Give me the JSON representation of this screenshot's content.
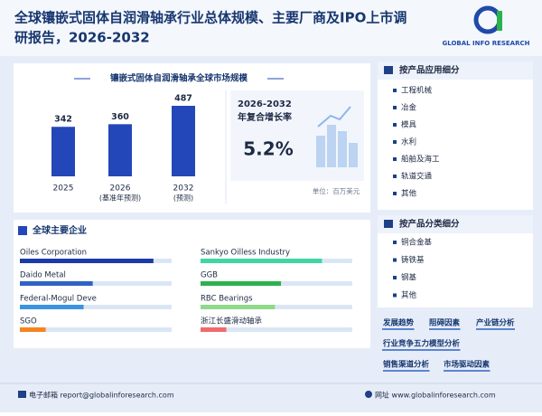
{
  "header": {
    "title_line1": "全球镶嵌式固体自润滑轴承行业总体规模、主要厂商及IPO上市调",
    "title_line2": "研报告，2026-2032",
    "logo": "GLOBAL INFO RESEARCH"
  },
  "market": {
    "title": "镶嵌式固体自润滑轴承全球市场规模",
    "color": "#2347b8",
    "bars": [
      {
        "year": "2025",
        "value": 342
      },
      {
        "year": "2026",
        "note": "(基准年预测)",
        "value": 360
      },
      {
        "year": "2032",
        "note": "(预测)",
        "value": 487
      }
    ],
    "cagr_period": "2026-2032",
    "cagr_label": "年复合增长率",
    "cagr_value": "5.2%",
    "unit": "单位：百万美元"
  },
  "companies": {
    "title": "全球主要企业",
    "items": [
      {
        "name": "Oiles Corporation",
        "share": 88,
        "color": "#1c3ba6"
      },
      {
        "name": "Sankyo Oilless Industry",
        "share": 80,
        "color": "#3fd6a2"
      },
      {
        "name": "Daido Metal",
        "share": 48,
        "color": "#2f62c6"
      },
      {
        "name": "GGB",
        "share": 53,
        "color": "#2bb24c"
      },
      {
        "name": "Federal-Mogul Deve",
        "share": 42,
        "color": "#3a93e3"
      },
      {
        "name": "RBC Bearings",
        "share": 49,
        "color": "#8fd98a"
      },
      {
        "name": "SGO",
        "share": 17,
        "color": "#f5841f"
      },
      {
        "name": "浙江长盛滑动轴承",
        "share": 17,
        "color": "#f06b6b"
      }
    ]
  },
  "application": {
    "title": "按产品应用细分",
    "items": [
      "工程机械",
      "冶金",
      "模具",
      "水利",
      "船舶及海工",
      "轨道交通",
      "其他"
    ]
  },
  "product_type": {
    "title": "按产品分类细分",
    "items": [
      "铜合金基",
      "铸铁基",
      "钢基",
      "其他"
    ]
  },
  "tags": [
    "发展趋势",
    "阻碍因素",
    "产业链分析",
    "行业竞争五力模型分析",
    "销售渠道分析",
    "市场驱动因素"
  ],
  "footer": {
    "email": "电子邮箱 report@globalinforesearch.com",
    "website": "网址 www.globalinforesearch.com"
  }
}
